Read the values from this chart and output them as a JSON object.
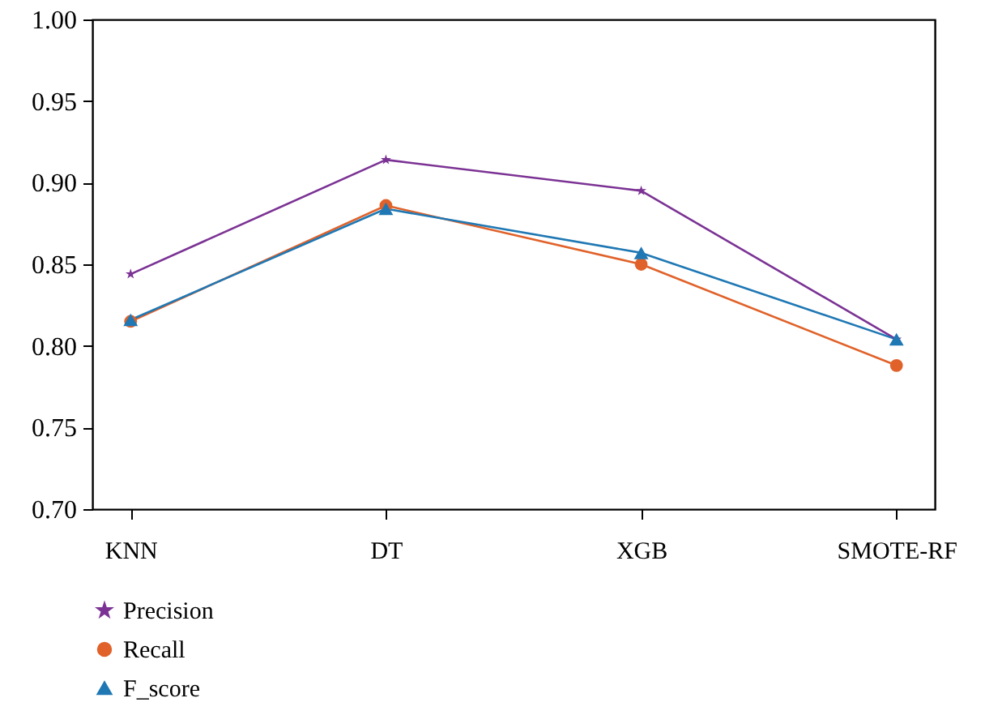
{
  "chart_data": {
    "type": "line",
    "categories": [
      "KNN",
      "DT",
      "XGB",
      "SMOTE-RF"
    ],
    "series": [
      {
        "name": "Precision",
        "color": "#7b3294",
        "marker": "star",
        "values": [
          0.844,
          0.914,
          0.895,
          0.804
        ]
      },
      {
        "name": "Recall",
        "color": "#e0622a",
        "marker": "circle",
        "values": [
          0.815,
          0.886,
          0.85,
          0.788
        ]
      },
      {
        "name": "F_score",
        "color": "#1f78b4",
        "marker": "triangle",
        "values": [
          0.816,
          0.884,
          0.857,
          0.804
        ]
      }
    ],
    "ylim": [
      0.7,
      1.0
    ],
    "yticks": [
      {
        "value": 0.7,
        "label": "0.70"
      },
      {
        "value": 0.75,
        "label": "0.75"
      },
      {
        "value": 0.8,
        "label": "0.80"
      },
      {
        "value": 0.85,
        "label": "0.85"
      },
      {
        "value": 0.9,
        "label": "0.90"
      },
      {
        "value": 0.95,
        "label": "0.95"
      },
      {
        "value": 1.0,
        "label": "1.00"
      }
    ],
    "grid": false,
    "legend": "bottom left",
    "line_style": "solid"
  }
}
